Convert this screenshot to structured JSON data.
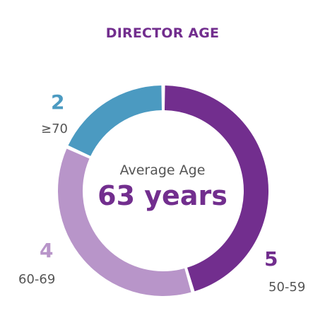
{
  "chart_data": {
    "type": "pie",
    "title": "DIRECTOR AGE",
    "categories": [
      "50-59",
      "60-69",
      "≥70"
    ],
    "values": [
      5,
      4,
      2
    ],
    "counts_text": [
      "5",
      "4",
      "2"
    ],
    "colors": [
      "#722e8e",
      "#b895c9",
      "#4b9ac1"
    ],
    "center": {
      "caption": "Average Age",
      "value": "63 years"
    }
  },
  "colors": {
    "title": "#722e8e",
    "center_value": "#722e8e",
    "center_caption": "#555555"
  }
}
